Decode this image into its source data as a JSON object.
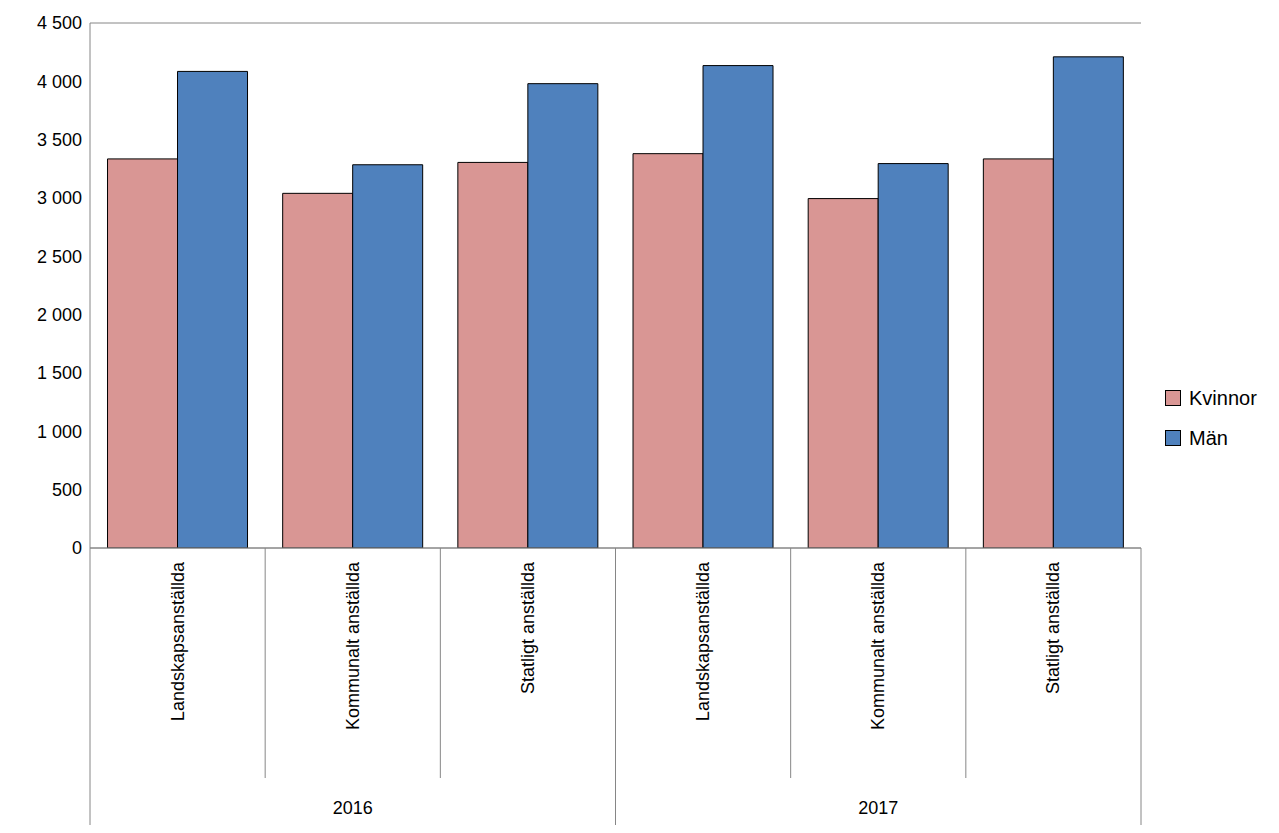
{
  "chart_data": {
    "type": "bar",
    "categories": [
      "Landskapsanställda",
      "Kommunalt anställda",
      "Statligt anställda",
      "Landskapsanställda",
      "Kommunalt anställda",
      "Statligt anställda"
    ],
    "groups": [
      "2016",
      "2016",
      "2016",
      "2017",
      "2017",
      "2017"
    ],
    "series": [
      {
        "name": "Kvinnor",
        "color": "#d99694",
        "values": [
          3335,
          3040,
          3305,
          3380,
          2995,
          3335
        ]
      },
      {
        "name": "Män",
        "color": "#4f81bd",
        "values": [
          4085,
          3285,
          3980,
          4135,
          3295,
          4210
        ]
      }
    ],
    "ylim": [
      0,
      4500
    ],
    "yticks": [
      0,
      500,
      {
        "value": 1000,
        "label": "1 000"
      },
      {
        "value": 1500,
        "label": "1 500"
      },
      {
        "value": 2000,
        "label": "2 000"
      },
      {
        "value": 2500,
        "label": "2 500"
      },
      {
        "value": 3000,
        "label": "3 000"
      },
      {
        "value": 3500,
        "label": "3 500"
      },
      {
        "value": 4000,
        "label": "4 000"
      },
      {
        "value": 4500,
        "label": "4 500"
      }
    ],
    "grid": true,
    "legend": "right"
  }
}
